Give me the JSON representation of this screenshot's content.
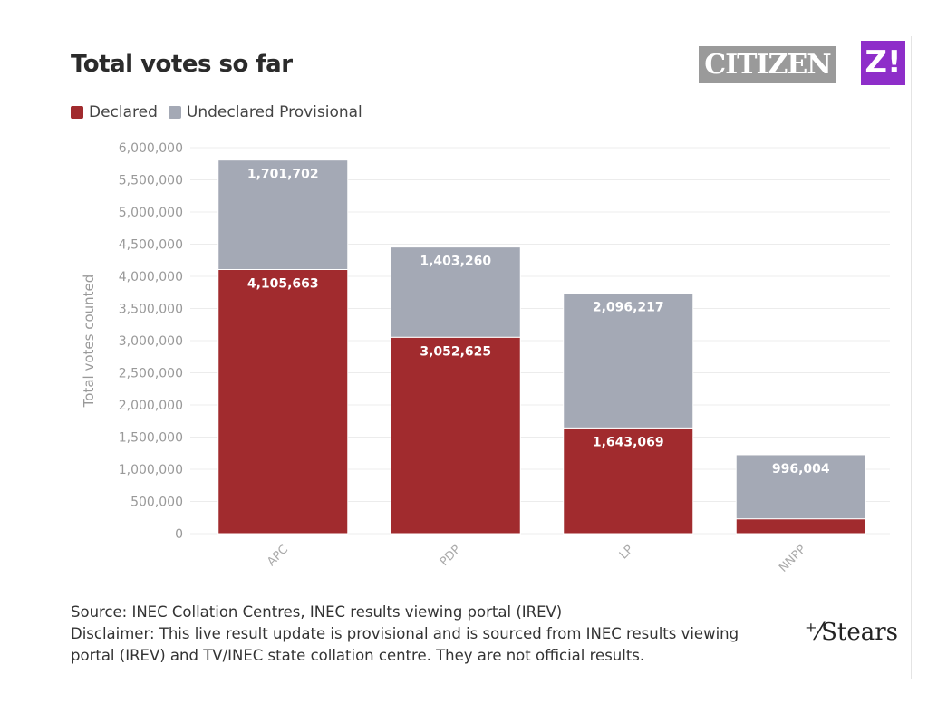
{
  "header": {
    "title": "Total votes so far",
    "logo_citizen": "CITIZEN",
    "logo_z": "Z!"
  },
  "chart_data": {
    "type": "bar",
    "stacked": true,
    "title": "Total votes so far",
    "categories": [
      "APC",
      "PDP",
      "LP",
      "NNPP"
    ],
    "series": [
      {
        "name": "Declared",
        "color": "#a12b2e",
        "values": [
          4105663,
          3052625,
          1643069,
          230000
        ],
        "labels": [
          "4,105,663",
          "3,052,625",
          "1,643,069",
          ""
        ]
      },
      {
        "name": "Undeclared Provisional",
        "color": "#a4a9b5",
        "values": [
          1701702,
          1403260,
          2096217,
          996004
        ],
        "labels": [
          "1,701,702",
          "1,403,260",
          "2,096,217",
          "996,004"
        ]
      }
    ],
    "ylabel": "Total votes counted",
    "xlabel": "",
    "ylim": [
      0,
      6000000
    ],
    "yticks": [
      "0",
      "500,000",
      "1,000,000",
      "1,500,000",
      "2,000,000",
      "2,500,000",
      "3,000,000",
      "3,500,000",
      "4,000,000",
      "4,500,000",
      "5,000,000",
      "5,500,000",
      "6,000,000"
    ],
    "grid": true,
    "legend": "top-left"
  },
  "footer": {
    "source": "Source: INEC Collation Centres, INEC results viewing portal (IREV)",
    "disclaimer": "Disclaimer: This live result update is provisional and is sourced from INEC results viewing portal (IREV) and TV/INEC state collation centre. They are not official results.",
    "brand": "Stears"
  }
}
